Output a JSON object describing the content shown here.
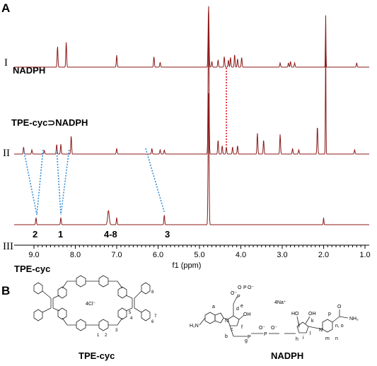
{
  "panel_a": {
    "letter": "A",
    "traces": [
      {
        "roman": "I",
        "name": "NADPH"
      },
      {
        "roman": "II",
        "name": "TPE-cyc⊃NADPH"
      },
      {
        "roman": "III",
        "name": "TPE-cyc"
      }
    ],
    "peak_labels": [
      "2",
      "1",
      "4-8",
      "3"
    ],
    "axis": {
      "ticks": [
        "9.0",
        "8.0",
        "7.0",
        "6.0",
        "5.0",
        "4.0",
        "3.0",
        "2.0",
        "1.0"
      ],
      "label": "f1 (ppm)"
    },
    "color": "#8b1a1a",
    "link_color": "#3a8fd6",
    "shift_color": "#e0181b"
  },
  "panel_b": {
    "letter": "B",
    "tpe_cyc": {
      "name": "TPE-cyc",
      "counterion": "4Cl⁻",
      "numbers": [
        "1",
        "2",
        "3",
        "4",
        "5",
        "6",
        "7",
        "8"
      ]
    },
    "nadph": {
      "name": "NADPH",
      "counterion": "4Na⁺",
      "atoms": [
        "H₂N",
        "NH₂",
        "O",
        "OH",
        "HO",
        "P",
        "O⁻",
        "N"
      ],
      "letters": [
        "a",
        "b",
        "c",
        "d",
        "e",
        "f",
        "g",
        "h",
        "i",
        "j",
        "k",
        "l",
        "m",
        "n",
        "n, o",
        "p"
      ]
    }
  }
}
